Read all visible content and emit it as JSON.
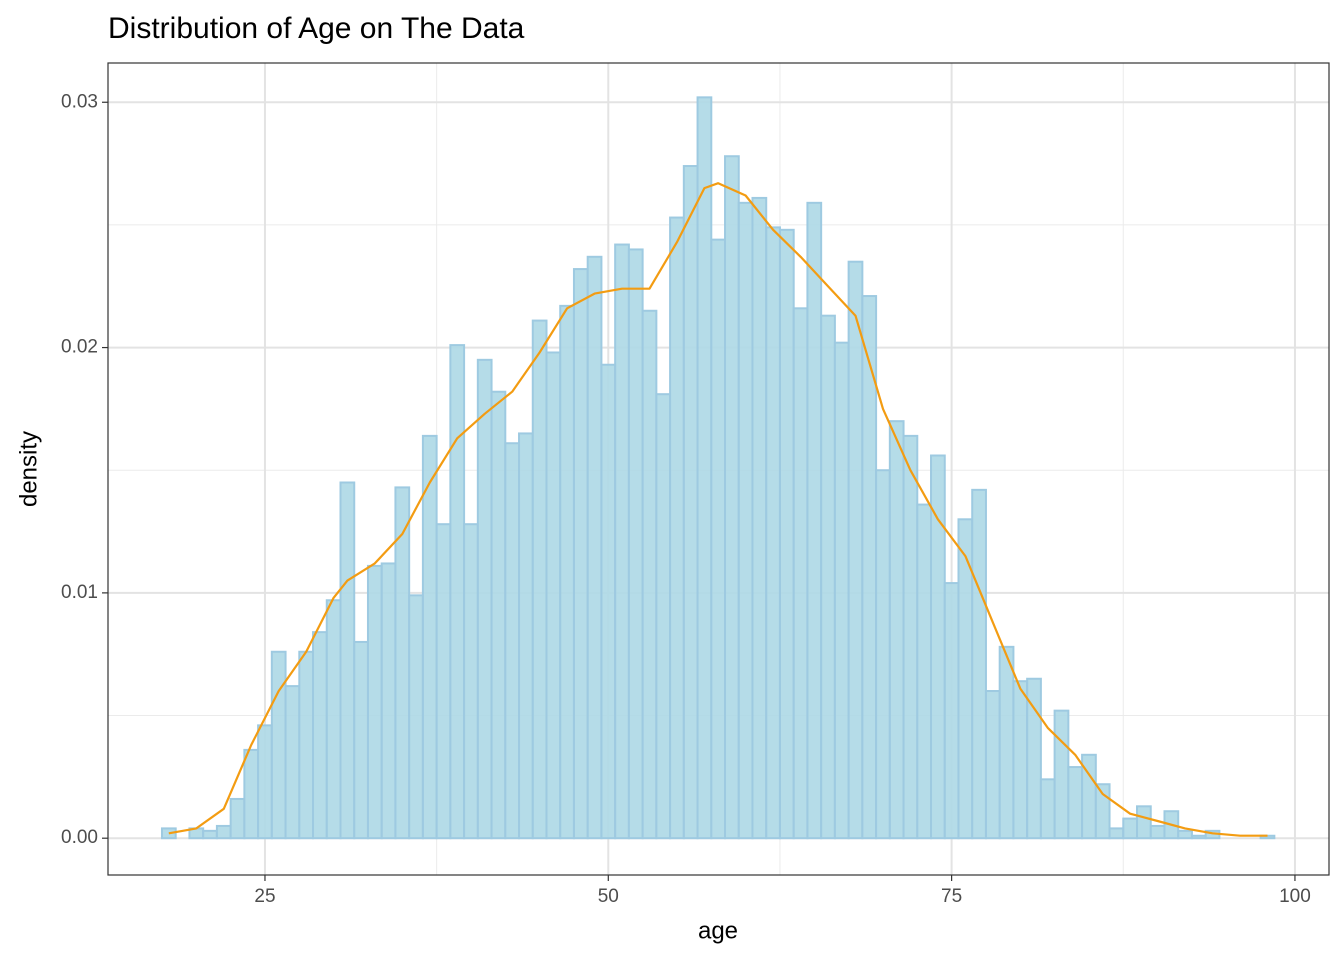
{
  "chart_data": {
    "type": "histogram",
    "title": "Distribution of Age on The Data",
    "x_label": "age",
    "y_label": "density",
    "bins": [
      17.5,
      18.5,
      19.5,
      20.5,
      21.5,
      22.5,
      23.5,
      24.5,
      25.5,
      26.5,
      27.5,
      28.5,
      29.5,
      30.5,
      31.5,
      32.5,
      33.5,
      34.5,
      35.5,
      36.5,
      37.5,
      38.5,
      39.5,
      40.5,
      41.5,
      42.5,
      43.5,
      44.5,
      45.5,
      46.5,
      47.5,
      48.5,
      49.5,
      50.5,
      51.5,
      52.5,
      53.5,
      54.5,
      55.5,
      56.5,
      57.5,
      58.5,
      59.5,
      60.5,
      61.5,
      62.5,
      63.5,
      64.5,
      65.5,
      66.5,
      67.5,
      68.5,
      69.5,
      70.5,
      71.5,
      72.5,
      73.5,
      74.5,
      75.5,
      76.5,
      77.5,
      78.5,
      79.5,
      80.5,
      81.5,
      82.5,
      83.5,
      84.5,
      85.5,
      86.5,
      87.5,
      88.5,
      89.5,
      90.5,
      91.5,
      92.5,
      93.5,
      94.5,
      95.5,
      96.5,
      97.5,
      98.5
    ],
    "values": [
      0.0004,
      0,
      0.0004,
      0.0003,
      0.0005,
      0.0016,
      0.0036,
      0.0046,
      0.0076,
      0.0062,
      0.0076,
      0.0084,
      0.0097,
      0.0145,
      0.008,
      0.0111,
      0.0112,
      0.0143,
      0.0099,
      0.0164,
      0.0128,
      0.0201,
      0.0128,
      0.0195,
      0.0182,
      0.0161,
      0.0165,
      0.0211,
      0.0198,
      0.0217,
      0.0232,
      0.0237,
      0.0193,
      0.0242,
      0.024,
      0.0215,
      0.0181,
      0.0253,
      0.0274,
      0.0302,
      0.0244,
      0.0278,
      0.0259,
      0.0261,
      0.0249,
      0.0248,
      0.0216,
      0.0259,
      0.0213,
      0.0202,
      0.0235,
      0.0221,
      0.015,
      0.017,
      0.0164,
      0.0136,
      0.0156,
      0.0104,
      0.013,
      0.0142,
      0.006,
      0.0078,
      0.0064,
      0.0065,
      0.0024,
      0.0052,
      0.0029,
      0.0034,
      0.0022,
      0.0004,
      0.0008,
      0.0013,
      0.0005,
      0.0011,
      0.0003,
      0.0001,
      0.0003,
      0,
      0,
      0,
      0.0001
    ],
    "color": "#add8e6",
    "edge_color": "#9ecae1",
    "density": {
      "color": "#f39c12",
      "x": [
        18,
        20,
        22,
        24,
        26,
        28,
        30,
        31,
        33,
        35,
        37,
        39,
        41,
        43,
        45,
        47,
        49,
        51,
        53,
        55,
        57,
        58,
        60,
        62,
        64,
        66,
        68,
        70,
        72,
        74,
        76,
        78,
        80,
        82,
        84,
        86,
        88,
        90,
        92,
        94,
        96,
        98
      ],
      "y": [
        0.0002,
        0.0004,
        0.0012,
        0.0038,
        0.006,
        0.0076,
        0.0098,
        0.0105,
        0.0112,
        0.0124,
        0.0145,
        0.0163,
        0.0173,
        0.0182,
        0.0198,
        0.0216,
        0.0222,
        0.0224,
        0.0224,
        0.0243,
        0.0265,
        0.0267,
        0.0262,
        0.0248,
        0.0237,
        0.0225,
        0.0213,
        0.0175,
        0.015,
        0.013,
        0.0115,
        0.0088,
        0.0061,
        0.0045,
        0.0034,
        0.0018,
        0.001,
        0.0007,
        0.0004,
        0.0002,
        0.0001,
        0.0001
      ]
    },
    "xlim": [
      13.57,
      102.48
    ],
    "ylim": [
      -0.0015,
      0.0316
    ],
    "xticks": [
      25,
      50,
      75,
      100
    ],
    "yticks": [
      {
        "value": 0,
        "label": "0.00"
      },
      {
        "value": 0.01,
        "label": "0.01"
      },
      {
        "value": 0.02,
        "label": "0.02"
      },
      {
        "value": 0.03,
        "label": "0.03"
      }
    ],
    "grid": true
  }
}
